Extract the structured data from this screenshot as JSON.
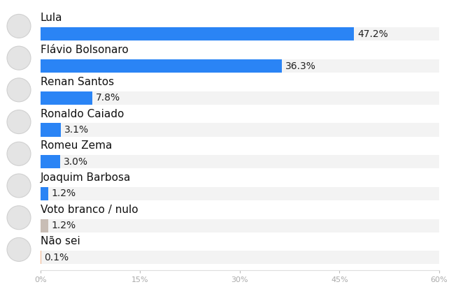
{
  "chart_data": {
    "type": "bar",
    "orientation": "horizontal",
    "categories": [
      "Lula",
      "Flávio Bolsonaro",
      "Renan Santos",
      "Ronaldo Caiado",
      "Romeu Zema",
      "Joaquim Barbosa",
      "Voto branco / nulo",
      "Não sei"
    ],
    "values": [
      47.2,
      36.3,
      7.8,
      3.1,
      3.0,
      1.2,
      1.2,
      0.1
    ],
    "value_labels": [
      "47.2%",
      "36.3%",
      "7.8%",
      "3.1%",
      "3.0%",
      "1.2%",
      "1.2%",
      "0.1%"
    ],
    "colors": [
      "#2a84f5",
      "#2a84f5",
      "#2a84f5",
      "#2a84f5",
      "#2a84f5",
      "#2a84f5",
      "#c8bdb5",
      "#f2b48c"
    ],
    "xlim": [
      0,
      60
    ],
    "xticks": [
      {
        "value": 0,
        "label": "0%"
      },
      {
        "value": 15,
        "label": "15%"
      },
      {
        "value": 30,
        "label": "30%"
      },
      {
        "value": 45,
        "label": "45%"
      },
      {
        "value": 60,
        "label": "60%"
      }
    ],
    "data_labels": true,
    "tick_labels": "x",
    "grid": false
  }
}
